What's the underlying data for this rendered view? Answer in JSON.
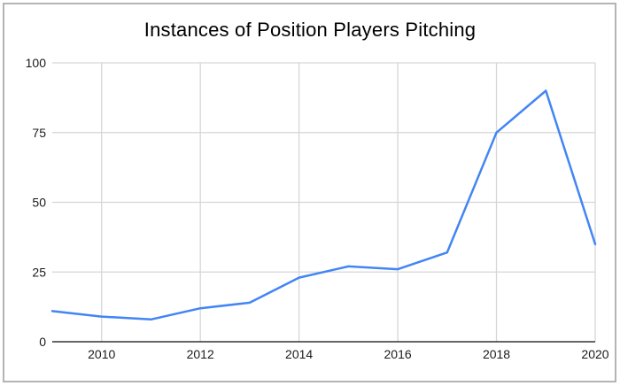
{
  "chart_data": {
    "type": "line",
    "title": "Instances of Position Players Pitching",
    "xlabel": "",
    "ylabel": "",
    "x": [
      2009,
      2010,
      2011,
      2012,
      2013,
      2014,
      2015,
      2016,
      2017,
      2018,
      2019,
      2020
    ],
    "series": [
      {
        "name": "Instances of Position Players Pitching",
        "values": [
          11,
          9,
          8,
          12,
          14,
          23,
          27,
          26,
          32,
          75,
          90,
          35
        ]
      }
    ],
    "xlim": [
      2009,
      2020
    ],
    "ylim": [
      0,
      100
    ],
    "x_ticks": [
      2010,
      2012,
      2014,
      2016,
      2018,
      2020
    ],
    "x_tick_labels": [
      "2010",
      "2012",
      "2014",
      "2016",
      "2018",
      "2020"
    ],
    "y_ticks": [
      0,
      25,
      50,
      75,
      100
    ],
    "y_tick_labels": [
      "0",
      "25",
      "50",
      "75",
      "100"
    ],
    "grid": "on",
    "legend": "none",
    "line_color": "#4285f4",
    "grid_color": "#d6d6d6",
    "axis_color": "#333333",
    "tick_label_color": "#1a1a1a",
    "frame_border_color": "#b4b4b4"
  }
}
